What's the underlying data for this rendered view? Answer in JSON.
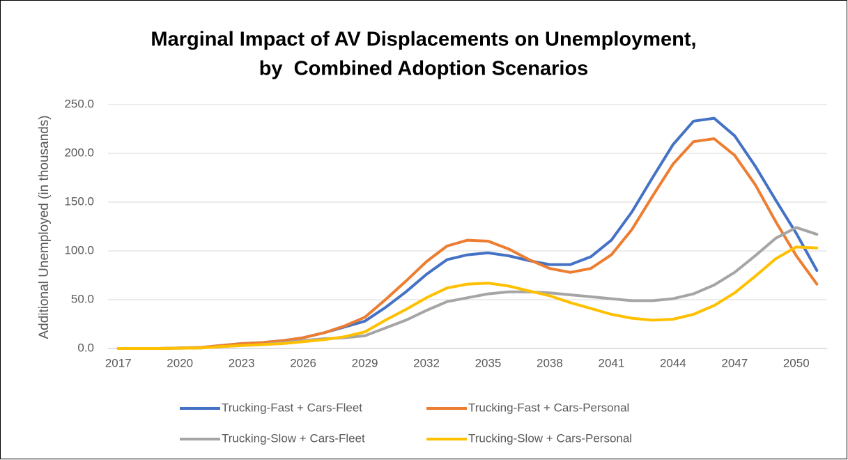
{
  "chart_data": {
    "type": "line",
    "title": [
      "Marginal Impact of AV Displacements on Unemployment,",
      "by  Combined Adoption Scenarios"
    ],
    "y_label": "Additional Unemployed (in thousands)",
    "categories": [
      "2017",
      null,
      null,
      "2020",
      null,
      null,
      "2023",
      null,
      null,
      "2026",
      null,
      null,
      "2029",
      null,
      null,
      "2032",
      null,
      null,
      "2035",
      null,
      null,
      "2038",
      null,
      null,
      "2041",
      null,
      null,
      "2044",
      null,
      null,
      "2047",
      null,
      null,
      "2050",
      null
    ],
    "series": [
      {
        "name": "Trucking-Fast + Cars-Fleet",
        "color": "#4472c4",
        "values": [
          0,
          0,
          0,
          0.5,
          1,
          3,
          5,
          6,
          8,
          11,
          16,
          22,
          28,
          42,
          58,
          76,
          91,
          96,
          98,
          95,
          90,
          86,
          86,
          94,
          111,
          140,
          175,
          209,
          233,
          236,
          218,
          187,
          152,
          118,
          80
        ]
      },
      {
        "name": "Trucking-Fast + Cars-Personal",
        "color": "#ed7d31",
        "values": [
          0,
          0,
          0,
          0.5,
          1,
          3,
          5,
          6,
          8,
          11,
          16,
          23,
          32,
          50,
          69,
          89,
          105,
          111,
          110,
          102,
          91,
          82,
          78,
          82,
          96,
          122,
          156,
          189,
          212,
          215,
          198,
          168,
          130,
          95,
          66
        ]
      },
      {
        "name": "Trucking-Slow + Cars-Fleet",
        "color": "#a5a5a5",
        "values": [
          0,
          0,
          0,
          0.3,
          0.5,
          2,
          3,
          4,
          6,
          8,
          10,
          11,
          13,
          21,
          29,
          39,
          48,
          52,
          56,
          58,
          58,
          57,
          55,
          53,
          51,
          49,
          49,
          51,
          56,
          65,
          78,
          95,
          113,
          124,
          117
        ]
      },
      {
        "name": "Trucking-Slow + Cars-Personal",
        "color": "#ffc000",
        "values": [
          0,
          0,
          0,
          0.3,
          0.5,
          2,
          3,
          4,
          5,
          7,
          9,
          12,
          17,
          29,
          40,
          52,
          62,
          66,
          67,
          64,
          59,
          54,
          47,
          41,
          35,
          31,
          29,
          30,
          35,
          44,
          57,
          74,
          92,
          104,
          103
        ]
      }
    ],
    "ylim": [
      0,
      250
    ],
    "yticks": [
      {
        "value": 0,
        "label": "0.0"
      },
      {
        "value": 50,
        "label": "50.0"
      },
      {
        "value": 100,
        "label": "100.0"
      },
      {
        "value": 150,
        "label": "150.0"
      },
      {
        "value": 200,
        "label": "200.0"
      },
      {
        "value": 250,
        "label": "250.0"
      }
    ],
    "grid": true
  }
}
